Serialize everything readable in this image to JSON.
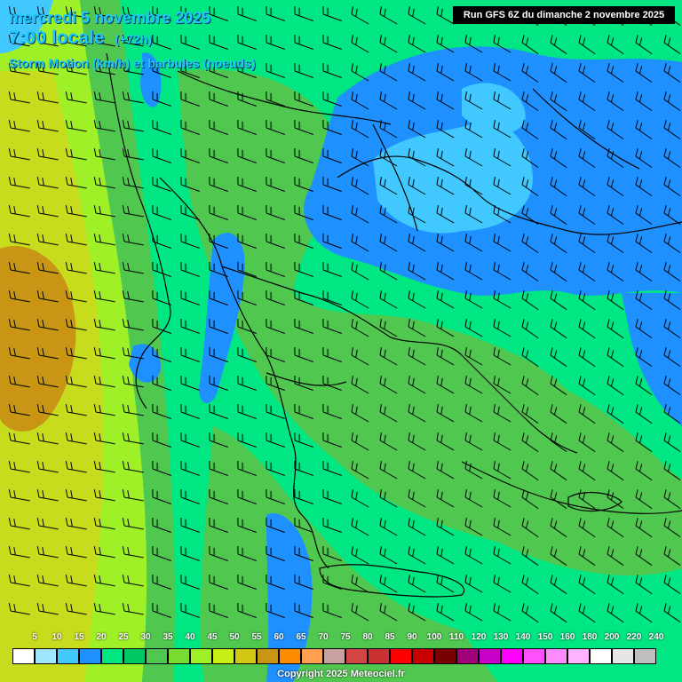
{
  "header": {
    "date_line": "mercredi 5 novembre 2025",
    "time_line": "7:00 locale",
    "lead_time": "(+72h)",
    "parameter": "Storm Motion (km/h) et barbules (noeuds)"
  },
  "run_info": "Run GFS 6Z du dimanche 2 novembre 2025",
  "copyright": "Copyright 2025 Meteociel.fr",
  "colors": {
    "ocean_base": "#00e682",
    "land_base": "#00d27a",
    "blue_zone": "#1e90ff",
    "light_blue_zone": "#41c8ff",
    "green_zone": "#50c850",
    "lime_zone": "#a0e628",
    "yellow_zone": "#c8dc1e",
    "orange_zone": "#c89614",
    "coastline": "#000000",
    "barb": "#000000"
  },
  "scale": [
    {
      "label": "5",
      "color": "#ffffff"
    },
    {
      "label": "10",
      "color": "#a0e6ff"
    },
    {
      "label": "15",
      "color": "#41c8ff"
    },
    {
      "label": "20",
      "color": "#1e90ff"
    },
    {
      "label": "25",
      "color": "#00e682"
    },
    {
      "label": "30",
      "color": "#00c864"
    },
    {
      "label": "35",
      "color": "#50c850"
    },
    {
      "label": "40",
      "color": "#78dc32"
    },
    {
      "label": "45",
      "color": "#a0f028"
    },
    {
      "label": "50",
      "color": "#c8f014"
    },
    {
      "label": "55",
      "color": "#d2c814"
    },
    {
      "label": "60",
      "color": "#c89614"
    },
    {
      "label": "65",
      "color": "#ff8c00"
    },
    {
      "label": "70",
      "color": "#ffa050"
    },
    {
      "label": "75",
      "color": "#c8a0a0"
    },
    {
      "label": "80",
      "color": "#d24646"
    },
    {
      "label": "85",
      "color": "#c83232"
    },
    {
      "label": "90",
      "color": "#ff0000"
    },
    {
      "label": "100",
      "color": "#c80000"
    },
    {
      "label": "110",
      "color": "#780000"
    },
    {
      "label": "120",
      "color": "#a00078"
    },
    {
      "label": "130",
      "color": "#c800c8"
    },
    {
      "label": "140",
      "color": "#ff00ff"
    },
    {
      "label": "150",
      "color": "#ff50ff"
    },
    {
      "label": "160",
      "color": "#ff8cff"
    },
    {
      "label": "180",
      "color": "#ffb4ff"
    },
    {
      "label": "200",
      "color": "#ffffff"
    },
    {
      "label": "220",
      "color": "#e6e6e6"
    },
    {
      "label": "240",
      "color": "#bebebe"
    }
  ]
}
